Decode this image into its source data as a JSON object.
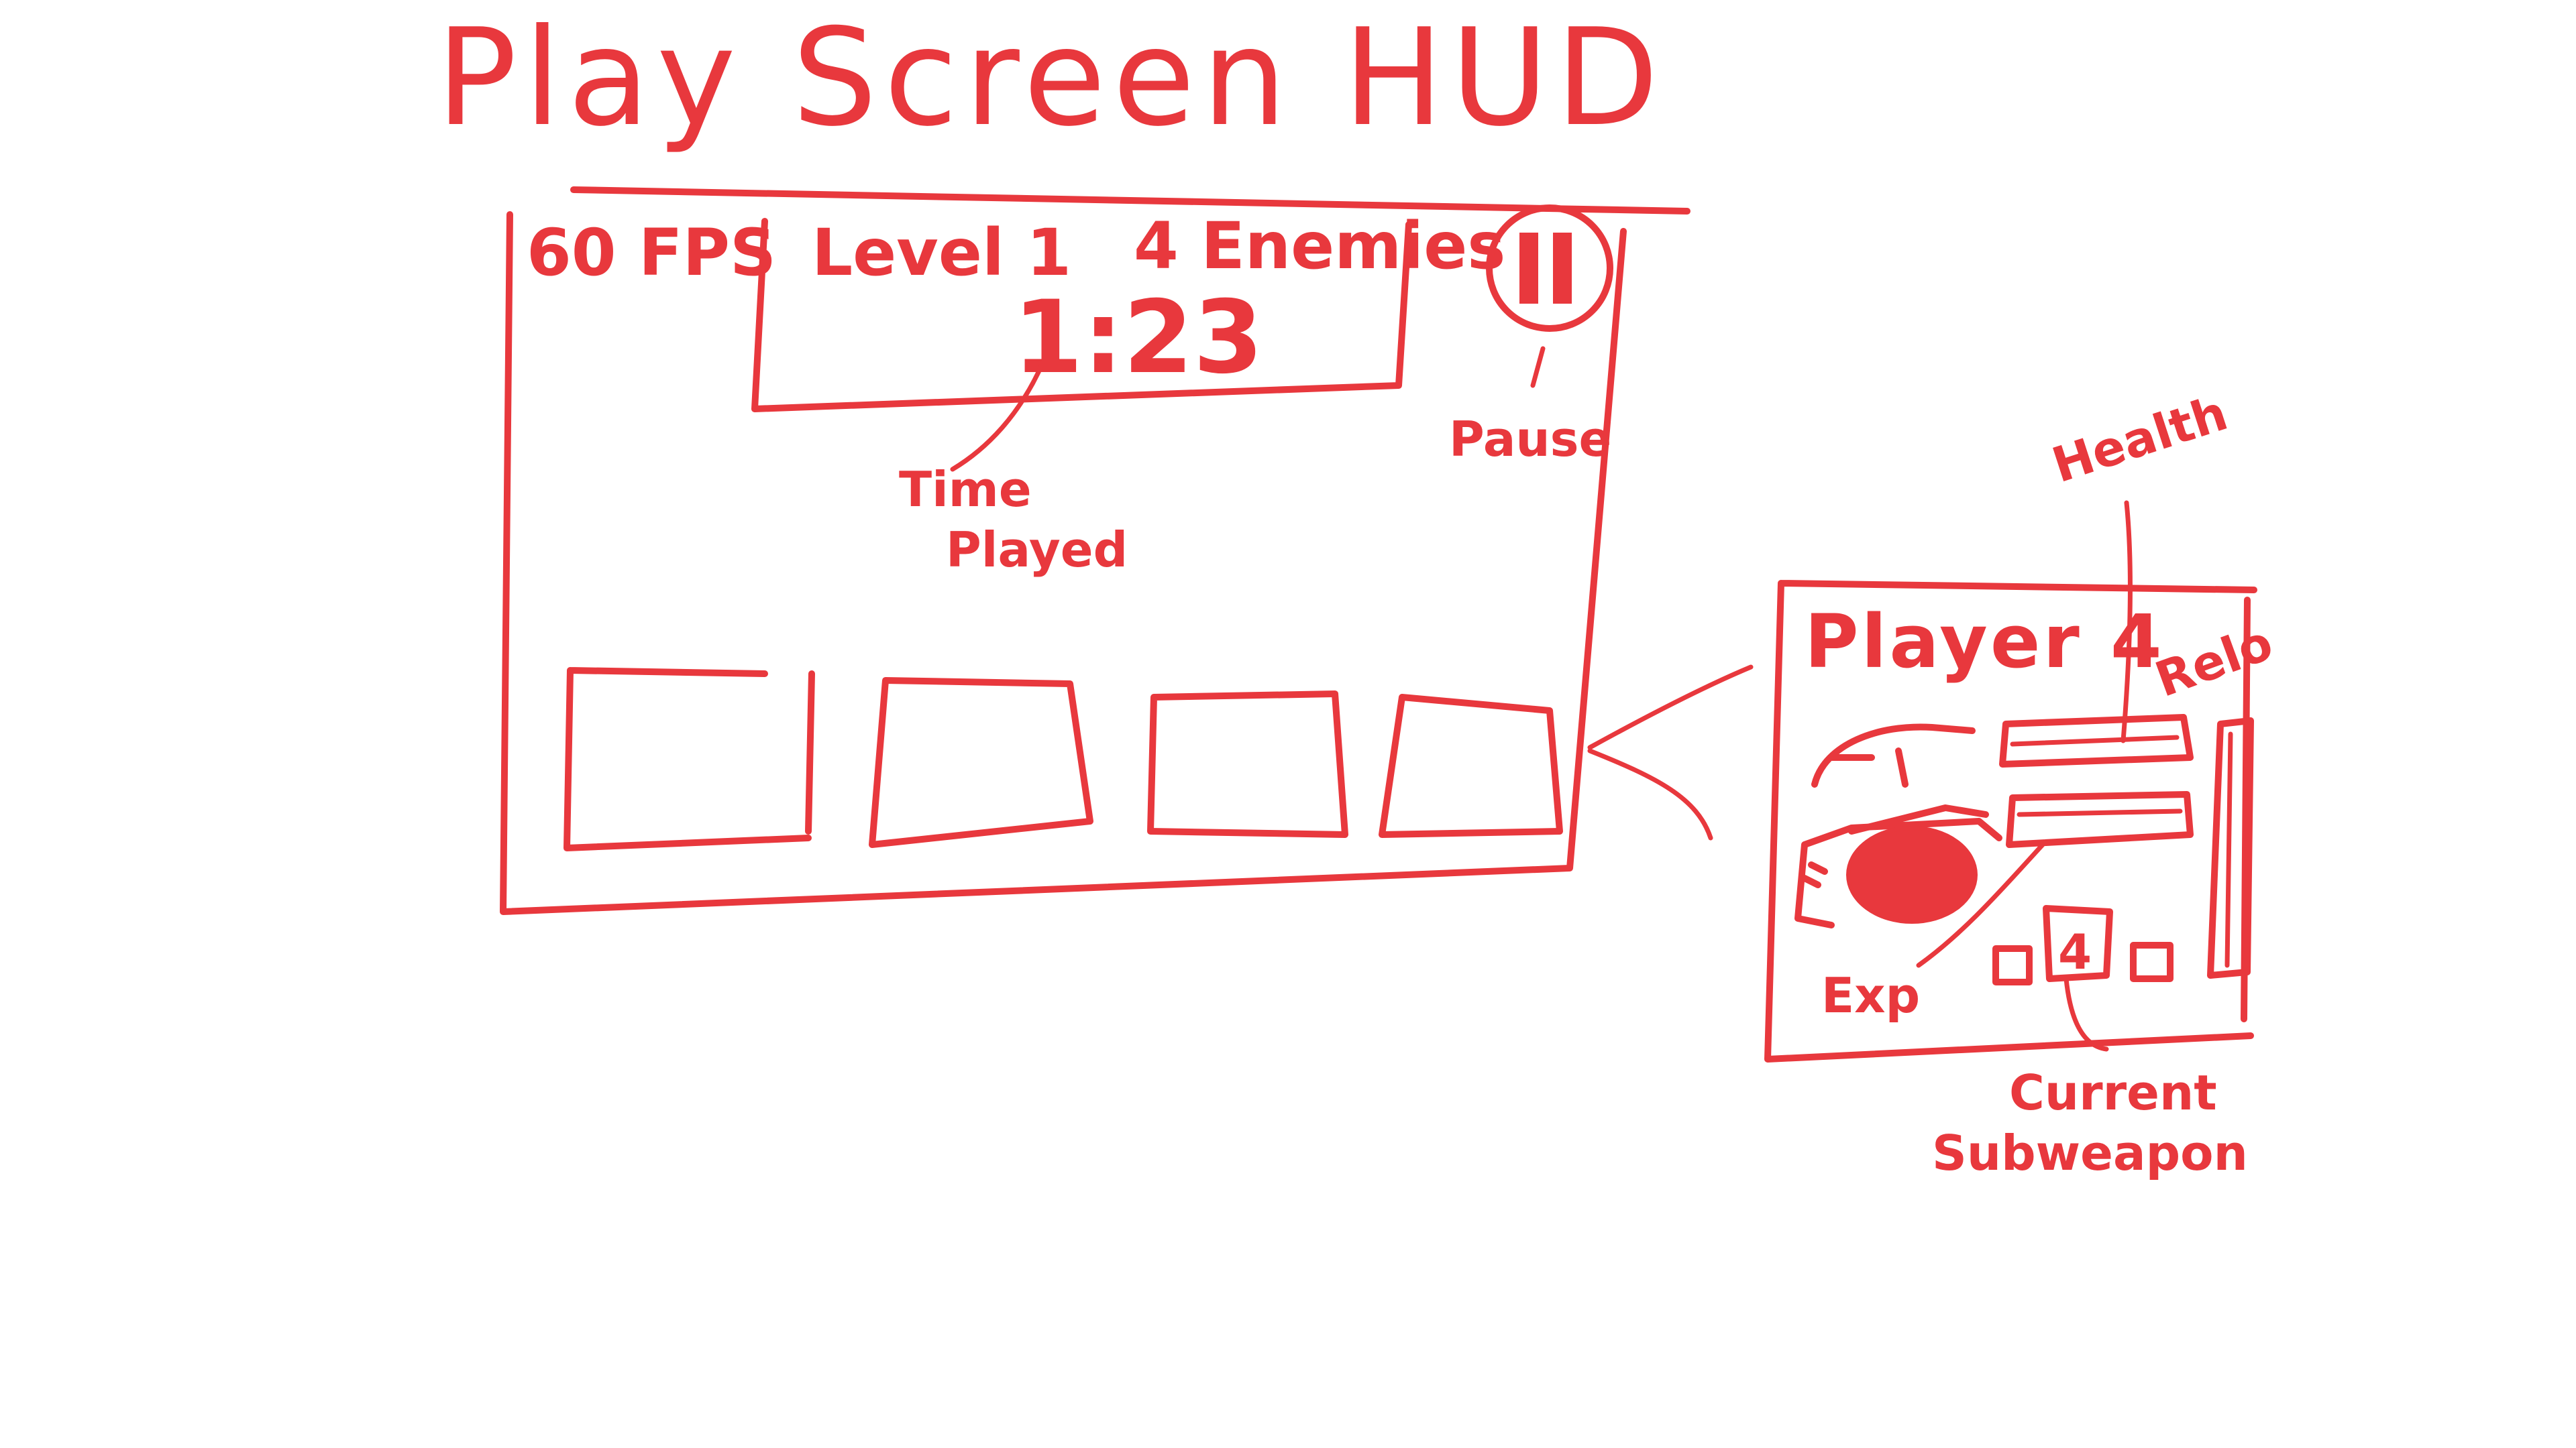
{
  "title": "Play Screen HUD",
  "screen": {
    "fps": "60 FPS",
    "level": "Level 1",
    "enemies": "4 Enemies",
    "time": "1:23",
    "annotations": {
      "time_played_line1": "Time",
      "time_played_line2": "Played",
      "pause": "Pause"
    }
  },
  "player_panel": {
    "name": "Player 4",
    "subweapon_count": "4",
    "annotations": {
      "health": "Health",
      "reload": "Relo",
      "exp": "Exp",
      "subweapon_line1": "Current",
      "subweapon_line2": "Subweapon"
    }
  },
  "colors": {
    "ink": "#e8383d",
    "background": "#ffffff"
  }
}
